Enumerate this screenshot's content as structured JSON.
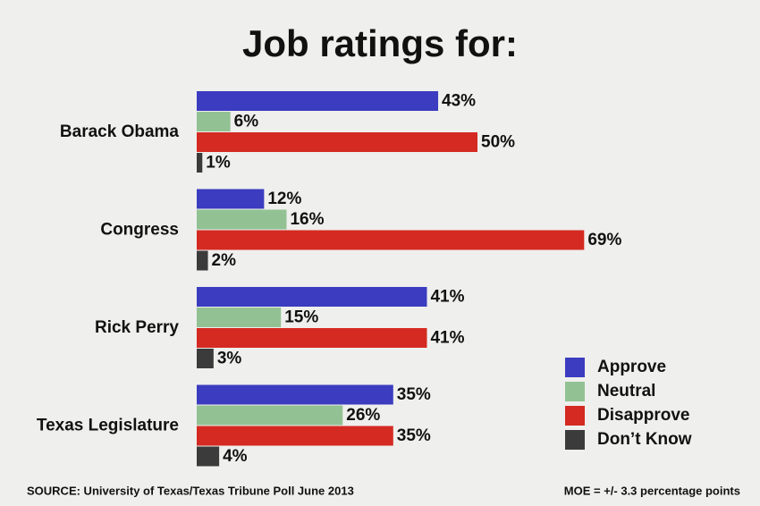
{
  "chart_data": {
    "type": "bar",
    "orientation": "horizontal",
    "title": "Job ratings for:",
    "categories": [
      "Barack Obama",
      "Congress",
      "Rick Perry",
      "Texas Legislature"
    ],
    "series": [
      {
        "name": "Approve",
        "color": "#3b3cc0",
        "values": [
          43,
          12,
          41,
          35
        ],
        "value_labels": [
          "43%",
          "12%",
          "41%",
          "35%"
        ]
      },
      {
        "name": "Neutral",
        "color": "#92c294",
        "values": [
          6,
          16,
          15,
          26
        ],
        "value_labels": [
          "6%",
          "16%",
          "15%",
          "26%"
        ]
      },
      {
        "name": "Disapprove",
        "color": "#d42a22",
        "values": [
          50,
          69,
          41,
          35
        ],
        "value_labels": [
          "50%",
          "69%",
          "41%",
          "35%"
        ]
      },
      {
        "name": "Don’t Know",
        "color": "#3b3b3b",
        "values": [
          1,
          2,
          3,
          4
        ],
        "value_labels": [
          "1%",
          "2%",
          "3%",
          "4%"
        ]
      }
    ],
    "legend": "lower right",
    "source": "SOURCE: University of Texas/Texas Tribune Poll June 2013",
    "note": "MOE = +/- 3.3 percentage points"
  }
}
